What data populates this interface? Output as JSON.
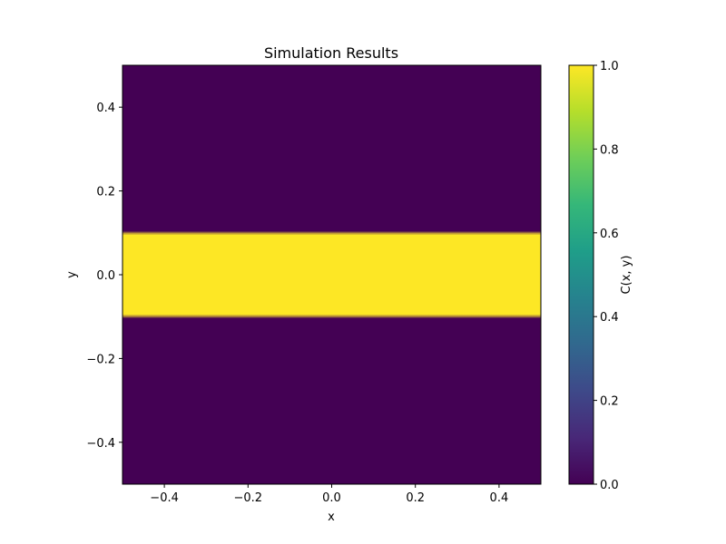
{
  "chart_data": {
    "type": "heatmap",
    "title": "Simulation Results",
    "xlabel": "x",
    "ylabel": "y",
    "xlim": [
      -0.5,
      0.5
    ],
    "ylim": [
      -0.5,
      0.5
    ],
    "x_ticks": [
      -0.4,
      -0.2,
      0.0,
      0.2,
      0.4
    ],
    "y_ticks": [
      -0.4,
      -0.2,
      0.0,
      0.2,
      0.4
    ],
    "x_tick_labels": [
      "−0.4",
      "−0.2",
      "0.0",
      "0.2",
      "0.4"
    ],
    "y_tick_labels": [
      "−0.4",
      "−0.2",
      "0.0",
      "0.2",
      "0.4"
    ],
    "colormap": "viridis",
    "field": {
      "description_of_values": "C = 1 inside band, 0 outside",
      "band_y_range": [
        -0.1,
        0.1
      ],
      "inside_value": 1.0,
      "outside_value": 0.0
    },
    "colorbar": {
      "label": "C(x, y)",
      "range": [
        0.0,
        1.0
      ],
      "ticks": [
        0.0,
        0.2,
        0.4,
        0.6,
        0.8,
        1.0
      ],
      "tick_labels": [
        "0.0",
        "0.2",
        "0.4",
        "0.6",
        "0.8",
        "1.0"
      ]
    },
    "grid": false,
    "legend": "none"
  },
  "colors": {
    "low": "#440154",
    "high": "#fde725",
    "viridis_stops": [
      "#440154",
      "#482878",
      "#3e4989",
      "#31688e",
      "#26828e",
      "#1f9e89",
      "#35b779",
      "#6ece58",
      "#b5de2b",
      "#fde725"
    ]
  }
}
